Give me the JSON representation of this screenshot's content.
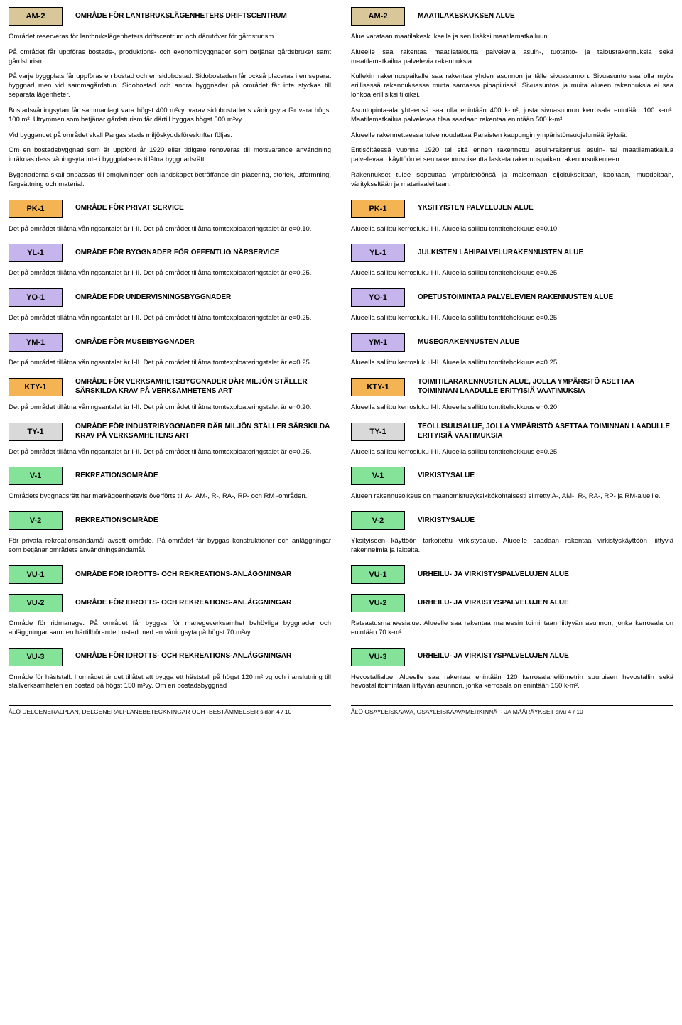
{
  "colors": {
    "tan": "#d9c79a",
    "orange": "#f5b454",
    "lilac": "#c6b4ec",
    "grey": "#d9d9d9",
    "green": "#85e399"
  },
  "left_footer": "ÅLÖ DELGENERALPLAN, DELGENERALPLANEBETECKNINGAR OCH -BESTÄMMELSER sidan 4 / 10",
  "right_footer": "ÅLÖ OSAYLEISKAAVA, OSAYLEISKAAVAMERKINNÄT- JA MÄÄRÄYKSET sivu 4 / 10",
  "sections": [
    {
      "code": "AM-2",
      "color": "tan",
      "left_title": "OMRÅDE FÖR LANTBRUKSLÄGENHETERS DRIFTSCENTRUM",
      "right_title": "MAATILAKESKUKSEN ALUE",
      "left_paras": [
        "Området reserveras för lantbrukslägenheters driftscentrum och därutöver för gårdsturism.",
        "På området får uppföras bostads-, produktions- och ekonomibyggnader som betjänar gårdsbruket samt gårdsturism.",
        "På varje byggplats får uppföras en bostad och en sidobostad. Sidobostaden får också placeras i en separat byggnad men vid sammagårdstun. Sidobostad och andra byggnader på området får inte styckas till separata lägenheter.",
        "Bostadsvåningsytan får sammanlagt vara högst 400 m²vy, varav sidobostadens våningsyta får vara högst 100 m². Utrymmen som betjänar gårdsturism får därtill byggas högst 500 m²vy.",
        "Vid byggandet på området skall Pargas stads miljöskyddsföreskrifter följas.",
        "Om en bostadsbyggnad som är uppförd år 1920 eller tidigare renoveras till motsvarande användning inräknas dess våningsyta inte i byggplatsens tillåtna byggnadsrätt.",
        "Byggnaderna skall anpassas till omgivningen och landskapet beträffande sin placering, storlek, utformning, färgsättning och material."
      ],
      "right_paras": [
        "Alue varataan maatilakeskukselle ja sen lisäksi maatilamatkailuun.",
        "Alueelle saa rakentaa maatilataloutta palvelevia asuin-, tuotanto- ja talousrakennuksia sekä maatilamatkailua palvelevia rakennuksia.",
        "Kullekin rakennuspaikalle saa rakentaa yhden asunnon ja tälle sivuasunnon. Sivuasunto saa olla myös erillisessä rakennuksessa mutta samassa pihapiirissä. Sivuasuntoa ja muita alueen rakennuksia ei saa lohkoa erillisiksi tiloiksi.",
        "Asuntopinta-ala yhteensä saa olla enintään 400 k-m², josta sivuasunnon kerrosala enintään 100 k-m². Maatilamatkailua palvelevaa tilaa saadaan rakentaa enintään 500 k-m².",
        "Alueelle rakennettaessa tulee noudattaa Paraisten kaupungin ympäristönsuojelumääräyksiä.",
        "Entisöitäessä vuonna 1920 tai sitä ennen rakennettu asuin-rakennus asuin- tai maatilamatkailua palvelevaan käyttöön ei sen rakennusoikeutta lasketa rakennuspaikan rakennusoikeuteen.",
        "Rakennukset tulee sopeuttaa ympäristöönsä ja maisemaan sijoitukseltaan, kooltaan, muodoltaan, väritykseltään ja materiaaleiltaan."
      ]
    },
    {
      "code": "PK-1",
      "color": "orange",
      "left_title": "OMRÅDE FÖR PRIVAT SERVICE",
      "right_title": "YKSITYISTEN PALVELUJEN ALUE",
      "left_paras": [
        "Det på området tillåtna våningsantalet är I-II. Det på området tillåtna tomtexploateringstalet är e=0.10."
      ],
      "right_paras": [
        "Alueella sallittu kerrosluku I-II. Alueella sallittu tonttitehokkuus e=0.10."
      ]
    },
    {
      "code": "YL-1",
      "color": "lilac",
      "left_title": "OMRÅDE FÖR BYGGNADER FÖR OFFENTLIG NÄRSERVICE",
      "right_title": "JULKISTEN LÄHIPALVELURAKENNUSTEN ALUE",
      "left_paras": [
        "Det på området tillåtna våningsantalet är I-II. Det på området tillåtna tomtexploateringstalet är e=0.25."
      ],
      "right_paras": [
        "Alueella sallittu kerrosluku I-II. Alueella sallittu tonttitehokkuus e=0.25."
      ]
    },
    {
      "code": "YO-1",
      "color": "lilac",
      "left_title": "OMRÅDE FÖR UNDERVISNINGSBYGGNADER",
      "right_title": "OPETUSTOIMINTAA PALVELEVIEN RAKENNUSTEN ALUE",
      "left_paras": [
        "Det på området tillåtna våningsantalet är I-II. Det på området tillåtna tomtexploateringstalet är e=0.25."
      ],
      "right_paras": [
        "Alueella sallittu kerrosluku I-II. Alueella sallittu tonttitehokkuus e=0.25."
      ]
    },
    {
      "code": "YM-1",
      "color": "lilac",
      "left_title": "OMRÅDE FÖR MUSEIBYGGNADER",
      "right_title": "MUSEORAKENNUSTEN ALUE",
      "left_paras": [
        "Det på området tillåtna våningsantalet är I-II. Det på området tillåtna tomtexploateringstalet är e=0.25."
      ],
      "right_paras": [
        "Alueella sallittu kerrosluku I-II. Alueella sallittu tonttitehokkuus e=0.25."
      ]
    },
    {
      "code": "KTY-1",
      "color": "orange",
      "left_title": "OMRÅDE FÖR VERKSAMHETSBYGGNADER DÄR MILJÖN STÄLLER SÄRSKILDA KRAV PÅ VERKSAMHETENS ART",
      "right_title": "TOIMITILARAKENNUSTEN ALUE, JOLLA YMPÄRISTÖ ASETTAA TOIMINNAN LAADULLE ERITYISIÄ VAATIMUKSIA",
      "left_paras": [
        "Det på området tillåtna våningsantalet är I-II. Det på området tillåtna tomtexploateringstalet är e=0.20."
      ],
      "right_paras": [
        "Alueella sallittu kerrosluku I-II. Alueella sallittu tonttitehokkuus e=0.20."
      ]
    },
    {
      "code": "TY-1",
      "color": "grey",
      "left_title": "OMRÅDE FÖR INDUSTRIBYGGNADER DÄR MILJÖN STÄLLER SÄRSKILDA KRAV PÅ VERKSAMHETENS ART",
      "right_title": "TEOLLISUUSALUE, JOLLA YMPÄRISTÖ ASETTAA TOIMINNAN LAADULLE ERITYISIÄ VAATIMUKSIA",
      "left_paras": [
        "Det på området tillåtna våningsantalet är I-II. Det på området tillåtna tomtexploateringstalet är e=0.25."
      ],
      "right_paras": [
        "Alueella sallittu kerrosluku I-II. Alueella sallittu tonttitehokkuus e=0.25."
      ]
    },
    {
      "code": "V-1",
      "color": "green",
      "left_title": "REKREATIONSOMRÅDE",
      "right_title": "VIRKISTYSALUE",
      "left_paras": [
        "Områdets byggnadsrätt har markägoenhetsvis överförts till A-, AM-, R-, RA-, RP- och RM -områden."
      ],
      "right_paras": [
        "Alueen rakennusoikeus on maanomistusyksikkökohtaisesti siirretty A-, AM-, R-, RA-, RP- ja RM-alueille."
      ]
    },
    {
      "code": "V-2",
      "color": "green",
      "left_title": "REKREATIONSOMRÅDE",
      "right_title": "VIRKISTYSALUE",
      "left_paras": [
        "För privata rekreationsändamål avsett område. På området får byggas konstruktioner och anläggningar som betjänar områdets användningsändamål."
      ],
      "right_paras": [
        "Yksityiseen käyttöön tarkoitettu virkistysalue. Alueelle saadaan rakentaa virkistyskäyttöön liittyviä rakennelmia ja laitteita."
      ]
    },
    {
      "code": "VU-1",
      "color": "green",
      "left_title": "OMRÅDE FÖR IDROTTS- OCH REKREATIONS-ANLÄGGNINGAR",
      "right_title": "URHEILU- JA VIRKISTYSPALVELUJEN ALUE",
      "left_paras": [],
      "right_paras": []
    },
    {
      "code": "VU-2",
      "color": "green",
      "left_title": "OMRÅDE FÖR IDROTTS- OCH REKREATIONS-ANLÄGGNINGAR",
      "right_title": "URHEILU- JA VIRKISTYSPALVELUJEN ALUE",
      "left_paras": [
        "Område för ridmanege. På området får byggas för manegeverksamhet behövliga byggnader och anläggningar samt en härtillhörande bostad med en våningsyta på högst 70 m²vy."
      ],
      "right_paras": [
        "Ratsastusmaneesialue. Alueelle saa rakentaa maneesin toimintaan liittyvän asunnon, jonka kerrosala on enintään 70 k-m²."
      ]
    },
    {
      "code": "VU-3",
      "color": "green",
      "left_title": "OMRÅDE FÖR IDROTTS- OCH REKREATIONS-ANLÄGGNINGAR",
      "right_title": "URHEILU- JA VIRKISTYSPALVELUJEN ALUE",
      "left_paras": [
        "Område för häststall. I området är det tillåtet att bygga ett häststall på högst 120 m² vg och i anslutning till stallverksamheten en bostad på högst 150 m²vy. Om en bostadsbyggnad"
      ],
      "right_paras": [
        "Hevostallialue. Alueelle saa rakentaa enintään 120 kerrosalaneliömetrin suuruisen hevostallin sekä hevostallitoimintaan liittyvän asunnon, jonka kerrosala on enintään 150 k-m²."
      ]
    }
  ]
}
